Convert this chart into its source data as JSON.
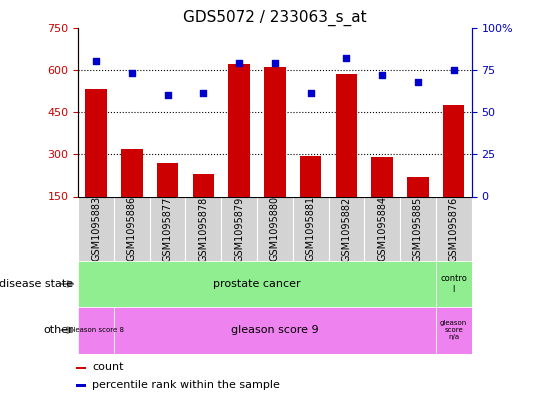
{
  "title": "GDS5072 / 233063_s_at",
  "samples": [
    "GSM1095883",
    "GSM1095886",
    "GSM1095877",
    "GSM1095878",
    "GSM1095879",
    "GSM1095880",
    "GSM1095881",
    "GSM1095882",
    "GSM1095884",
    "GSM1095885",
    "GSM1095876"
  ],
  "counts": [
    530,
    320,
    270,
    230,
    620,
    610,
    295,
    585,
    290,
    220,
    475
  ],
  "percentiles": [
    80,
    73,
    60,
    61,
    79,
    79,
    61,
    82,
    72,
    68,
    75
  ],
  "ylim_left": [
    150,
    750
  ],
  "ylim_right": [
    0,
    100
  ],
  "yticks_left": [
    150,
    300,
    450,
    600,
    750
  ],
  "yticks_right": [
    0,
    25,
    50,
    75,
    100
  ],
  "bar_color": "#CC0000",
  "dot_color": "#0000CC",
  "bg_color": "#FFFFFF",
  "disease_state_colors": [
    "#90EE90",
    "#90EE90"
  ],
  "other_colors": [
    "#EE82EE",
    "#EE82EE",
    "#EE82EE"
  ],
  "legend_items": [
    "count",
    "percentile rank within the sample"
  ],
  "legend_colors": [
    "#CC0000",
    "#0000CC"
  ],
  "xtick_bg": "#D3D3D3"
}
